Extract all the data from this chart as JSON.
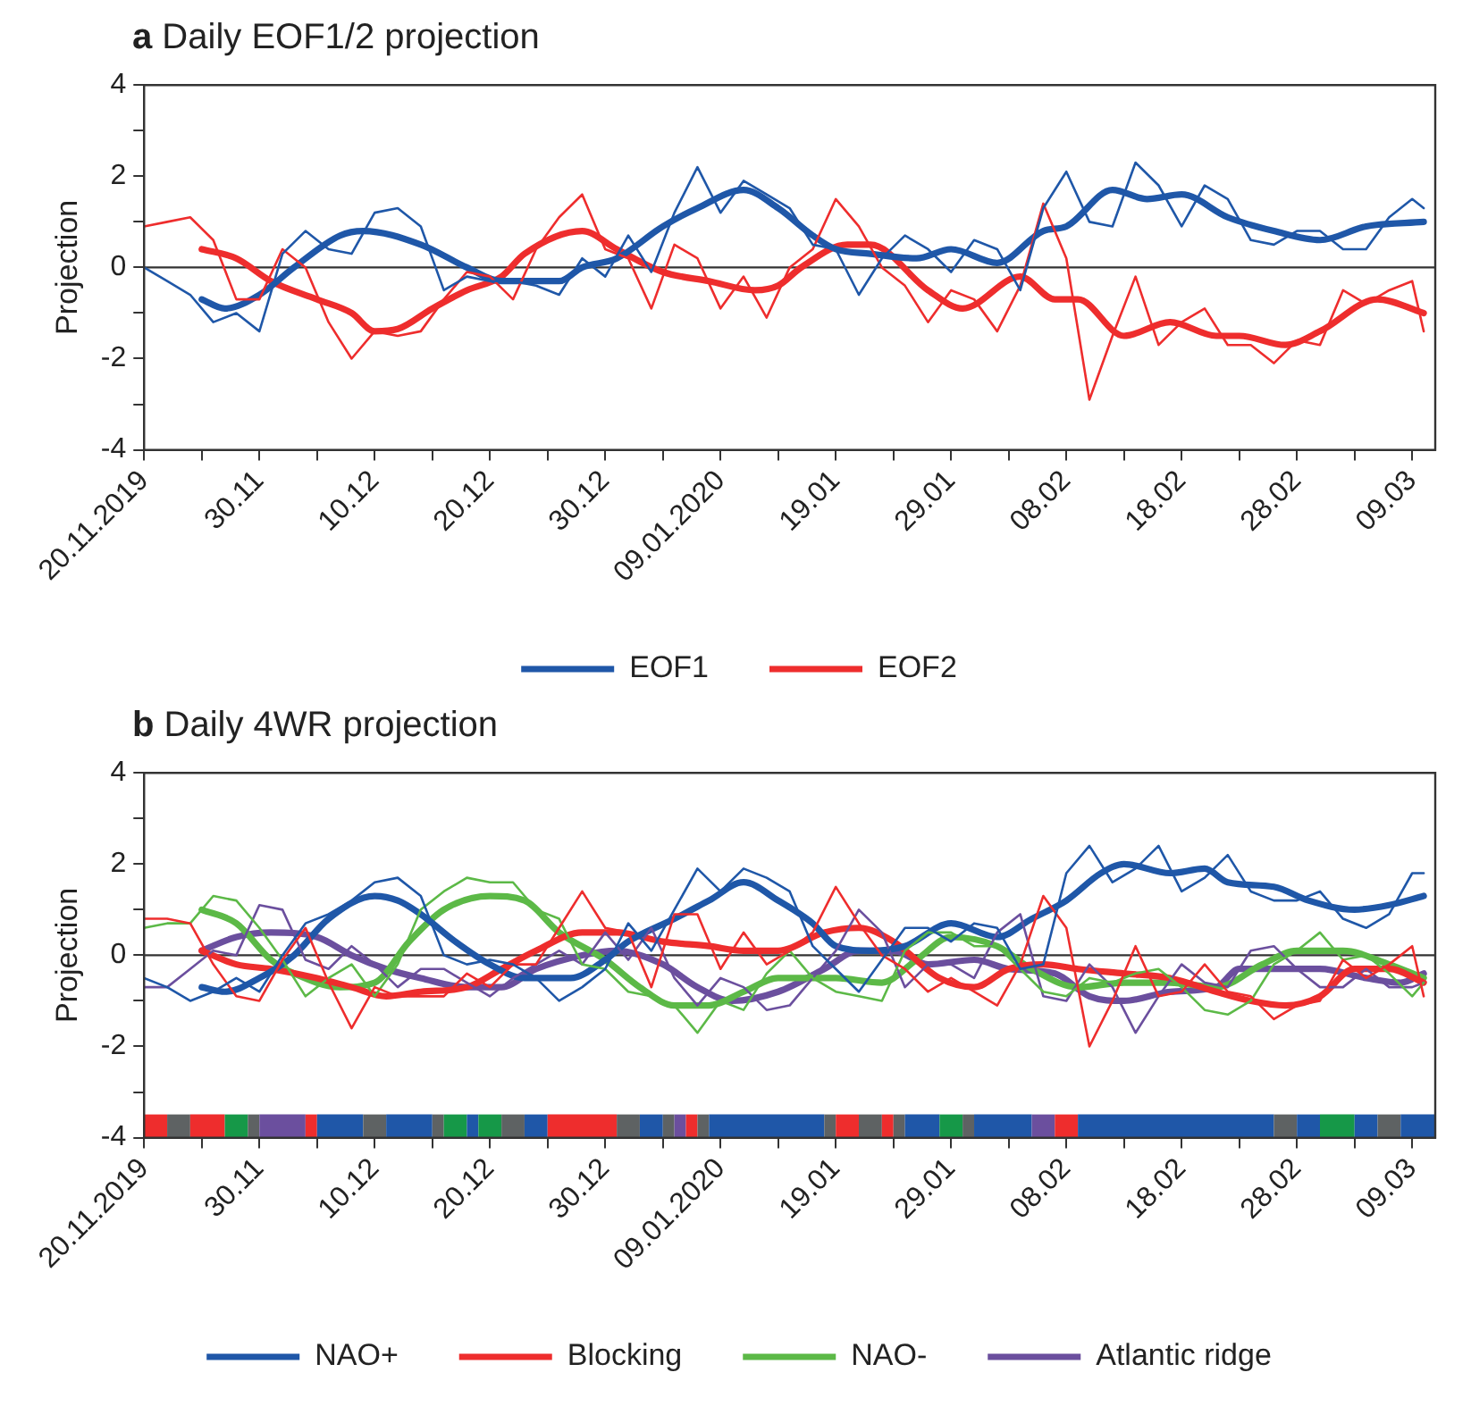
{
  "chart_data": [
    {
      "type": "line",
      "title": "a Daily EOF1/2 projection",
      "ylabel": "Projection",
      "x": [
        "2019-11-20",
        "2019-11-22",
        "2019-11-24",
        "2019-11-26",
        "2019-11-28",
        "2019-11-30",
        "2019-12-02",
        "2019-12-04",
        "2019-12-06",
        "2019-12-08",
        "2019-12-10",
        "2019-12-12",
        "2019-12-14",
        "2019-12-16",
        "2019-12-18",
        "2019-12-20",
        "2019-12-22",
        "2019-12-24",
        "2019-12-26",
        "2019-12-28",
        "2019-12-30",
        "2020-01-01",
        "2020-01-03",
        "2020-01-05",
        "2020-01-07",
        "2020-01-09",
        "2020-01-11",
        "2020-01-13",
        "2020-01-15",
        "2020-01-17",
        "2020-01-19",
        "2020-01-21",
        "2020-01-23",
        "2020-01-25",
        "2020-01-27",
        "2020-01-29",
        "2020-01-31",
        "2020-02-02",
        "2020-02-04",
        "2020-02-06",
        "2020-02-08",
        "2020-02-10",
        "2020-02-12",
        "2020-02-14",
        "2020-02-16",
        "2020-02-18",
        "2020-02-20",
        "2020-02-22",
        "2020-02-24",
        "2020-02-26",
        "2020-02-28",
        "2020-03-01",
        "2020-03-03",
        "2020-03-05",
        "2020-03-07",
        "2020-03-09",
        "2020-03-10"
      ],
      "series": [
        {
          "color": "#1f57a8",
          "values": [
            0,
            -0.3,
            -0.6,
            -1.2,
            -1,
            -1.4,
            0.3,
            0.8,
            0.4,
            0.3,
            1.2,
            1.3,
            0.9,
            -0.5,
            -0.2,
            -0.3,
            -0.3,
            -0.4,
            -0.6,
            0.2,
            -0.2,
            0.7,
            -0.1,
            1.2,
            2.2,
            1.2,
            1.9,
            1.6,
            1.3,
            0.5,
            0.4,
            -0.6,
            0.2,
            0.7,
            0.4,
            -0.1,
            0.6,
            0.4,
            -0.5,
            1.3,
            2.1,
            1,
            0.9,
            2.3,
            1.8,
            0.9,
            1.8,
            1.5,
            0.6,
            0.5,
            0.8,
            0.8,
            0.4,
            0.4,
            1.1,
            1.5,
            1.3
          ]
        },
        {
          "color": "#ee2d2d",
          "values": [
            0.9,
            1,
            1.1,
            0.6,
            -0.7,
            -0.7,
            0.4,
            0,
            -1.2,
            -2,
            -1.4,
            -1.5,
            -1.4,
            -0.7,
            -0.1,
            -0.2,
            -0.7,
            0.4,
            1.1,
            1.6,
            0.4,
            0.2,
            -0.9,
            0.5,
            0.2,
            -0.9,
            -0.2,
            -1.1,
            0,
            0.4,
            1.5,
            0.9,
            0,
            -0.4,
            -1.2,
            -0.5,
            -0.7,
            -1.4,
            -0.4,
            1.4,
            0.2,
            -2.9,
            -1.5,
            -0.2,
            -1.7,
            -1.2,
            -0.9,
            -1.7,
            -1.7,
            -2.1,
            -1.6,
            -1.7,
            -0.5,
            -0.8,
            -0.5,
            -0.3,
            -1.4
          ]
        },
        {
          "name": "EOF1",
          "color": "#1f57a8",
          "x": [
            "2019-11-25",
            "2019-11-27",
            "2019-11-30",
            "2019-12-03",
            "2019-12-07",
            "2019-12-09",
            "2019-12-14",
            "2019-12-18",
            "2019-12-21",
            "2019-12-26",
            "2019-12-28",
            "2019-12-31",
            "2020-01-04",
            "2020-01-07",
            "2020-01-11",
            "2020-01-14",
            "2020-01-17",
            "2020-01-19",
            "2020-01-22",
            "2020-01-26",
            "2020-01-29",
            "2020-02-02",
            "2020-02-06",
            "2020-02-08",
            "2020-02-12",
            "2020-02-15",
            "2020-02-18",
            "2020-02-22",
            "2020-02-26",
            "2020-03-01",
            "2020-03-05",
            "2020-03-10"
          ],
          "values": [
            -0.7,
            -0.9,
            -0.6,
            0,
            0.7,
            0.8,
            0.5,
            0,
            -0.3,
            -0.3,
            0,
            0.2,
            0.9,
            1.3,
            1.7,
            1.3,
            0.7,
            0.4,
            0.3,
            0.2,
            0.4,
            0.1,
            0.8,
            0.9,
            1.7,
            1.5,
            1.6,
            1.1,
            0.8,
            0.6,
            0.9,
            1
          ]
        },
        {
          "name": "EOF2",
          "color": "#ee2d2d",
          "x": [
            "2019-11-25",
            "2019-11-28",
            "2019-12-01",
            "2019-12-05",
            "2019-12-08",
            "2019-12-10",
            "2019-12-12",
            "2019-12-15",
            "2019-12-18",
            "2019-12-21",
            "2019-12-23",
            "2019-12-28",
            "2019-12-31",
            "2020-01-04",
            "2020-01-08",
            "2020-01-12",
            "2020-01-14",
            "2020-01-16",
            "2020-01-20",
            "2020-01-22",
            "2020-01-27",
            "2020-01-30",
            "2020-02-04",
            "2020-02-07",
            "2020-02-09",
            "2020-02-13",
            "2020-02-17",
            "2020-02-21",
            "2020-02-23",
            "2020-02-27",
            "2020-03-01",
            "2020-03-06",
            "2020-03-10"
          ],
          "values": [
            0.4,
            0.2,
            -0.3,
            -0.7,
            -1,
            -1.4,
            -1.35,
            -0.9,
            -0.5,
            -0.2,
            0.3,
            0.8,
            0.4,
            -0.1,
            -0.3,
            -0.5,
            -0.4,
            0,
            0.5,
            0.5,
            -0.5,
            -0.9,
            -0.2,
            -0.7,
            -0.7,
            -1.5,
            -1.2,
            -1.5,
            -1.5,
            -1.7,
            -1.4,
            -0.7,
            -1
          ]
        }
      ],
      "xlim": [
        "2019-11-20",
        "2020-03-11"
      ],
      "xticks": [
        {
          "value": "2019-11-20",
          "label": "20.11.2019"
        },
        {
          "value": "2019-11-25",
          "label": null
        },
        {
          "value": "2019-11-30",
          "label": "30.11"
        },
        {
          "value": "2019-12-05",
          "label": null
        },
        {
          "value": "2019-12-10",
          "label": "10.12"
        },
        {
          "value": "2019-12-15",
          "label": null
        },
        {
          "value": "2019-12-20",
          "label": "20.12"
        },
        {
          "value": "2019-12-25",
          "label": null
        },
        {
          "value": "2019-12-30",
          "label": "30.12"
        },
        {
          "value": "2020-01-04",
          "label": null
        },
        {
          "value": "2020-01-09",
          "label": "09.01.2020"
        },
        {
          "value": "2020-01-14",
          "label": null
        },
        {
          "value": "2020-01-19",
          "label": "19.01"
        },
        {
          "value": "2020-01-24",
          "label": null
        },
        {
          "value": "2020-01-29",
          "label": "29.01"
        },
        {
          "value": "2020-02-03",
          "label": null
        },
        {
          "value": "2020-02-08",
          "label": "08.02"
        },
        {
          "value": "2020-02-13",
          "label": null
        },
        {
          "value": "2020-02-18",
          "label": "18.02"
        },
        {
          "value": "2020-02-23",
          "label": null
        },
        {
          "value": "2020-02-28",
          "label": "28.02"
        },
        {
          "value": "2020-03-04",
          "label": null
        },
        {
          "value": "2020-03-09",
          "label": "09.03"
        }
      ],
      "ylim": [
        -4,
        4
      ],
      "yticks": [
        -4,
        {
          "value": -3,
          "label": null
        },
        -2,
        {
          "value": -1,
          "label": null
        },
        0,
        {
          "value": 1,
          "label": null
        },
        2,
        {
          "value": 3,
          "label": null
        },
        4
      ],
      "ref_lines": [
        {
          "axis": "y",
          "value": 0,
          "color": "#333333"
        }
      ],
      "legend": "bottom",
      "marker": "none",
      "line_style": "solid"
    },
    {
      "type": "line",
      "title": "b Daily 4WR projection",
      "ylabel": "Projection",
      "x": [
        "2019-11-20",
        "2019-11-22",
        "2019-11-24",
        "2019-11-26",
        "2019-11-28",
        "2019-11-30",
        "2019-12-02",
        "2019-12-04",
        "2019-12-06",
        "2019-12-08",
        "2019-12-10",
        "2019-12-12",
        "2019-12-14",
        "2019-12-16",
        "2019-12-18",
        "2019-12-20",
        "2019-12-22",
        "2019-12-24",
        "2019-12-26",
        "2019-12-28",
        "2019-12-30",
        "2020-01-01",
        "2020-01-03",
        "2020-01-05",
        "2020-01-07",
        "2020-01-09",
        "2020-01-11",
        "2020-01-13",
        "2020-01-15",
        "2020-01-17",
        "2020-01-19",
        "2020-01-21",
        "2020-01-23",
        "2020-01-25",
        "2020-01-27",
        "2020-01-29",
        "2020-01-31",
        "2020-02-02",
        "2020-02-04",
        "2020-02-06",
        "2020-02-08",
        "2020-02-10",
        "2020-02-12",
        "2020-02-14",
        "2020-02-16",
        "2020-02-18",
        "2020-02-20",
        "2020-02-22",
        "2020-02-24",
        "2020-02-26",
        "2020-02-28",
        "2020-03-01",
        "2020-03-03",
        "2020-03-05",
        "2020-03-07",
        "2020-03-09",
        "2020-03-10"
      ],
      "series": [
        {
          "color": "#1f57a8",
          "values": [
            -0.5,
            -0.7,
            -1,
            -0.8,
            -0.5,
            -0.8,
            0,
            0.7,
            0.9,
            1.2,
            1.6,
            1.7,
            1.3,
            0,
            -0.2,
            -0.1,
            -0.2,
            -0.5,
            -1,
            -0.7,
            -0.3,
            0.7,
            0.1,
            1,
            1.9,
            1.4,
            1.9,
            1.7,
            1.4,
            0.2,
            -0.3,
            -0.8,
            -0.1,
            0.6,
            0.6,
            0.3,
            0.7,
            0.6,
            -0.3,
            -0.2,
            1.8,
            2.4,
            1.6,
            1.9,
            2.4,
            1.4,
            1.7,
            2.2,
            1.4,
            1.2,
            1.2,
            1.4,
            0.8,
            0.6,
            0.9,
            1.8,
            1.8
          ]
        },
        {
          "color": "#ee2d2d",
          "values": [
            0.8,
            0.8,
            0.7,
            -0.2,
            -0.9,
            -1,
            -0.1,
            0.6,
            -0.6,
            -1.6,
            -0.7,
            -0.9,
            -0.9,
            -0.9,
            -0.4,
            -0.7,
            -0.2,
            -0.2,
            0.6,
            1.4,
            0.6,
            0.5,
            -0.7,
            0.9,
            0.9,
            -0.3,
            0.5,
            -0.2,
            0.1,
            0.5,
            1.5,
            0.7,
            0,
            -0.3,
            -0.8,
            -0.5,
            -0.8,
            -1.1,
            -0.2,
            1.3,
            0.6,
            -2,
            -1,
            0.2,
            -0.9,
            -0.8,
            -0.2,
            -0.8,
            -0.9,
            -1.4,
            -1.1,
            -1,
            -0.1,
            -0.5,
            -0.2,
            0.2,
            -0.9
          ]
        },
        {
          "color": "#5cb947",
          "values": [
            0.6,
            0.7,
            0.7,
            1.3,
            1.2,
            0.6,
            -0.1,
            -0.9,
            -0.5,
            -0.2,
            -0.9,
            -0.2,
            1,
            1.4,
            1.7,
            1.6,
            1.6,
            1,
            0.8,
            -0.2,
            -0.3,
            -0.8,
            -0.9,
            -1.1,
            -1.7,
            -1,
            -1.2,
            -0.4,
            0.1,
            -0.5,
            -0.8,
            -0.9,
            -1,
            0.1,
            0.5,
            0.5,
            0.2,
            0.2,
            -0.3,
            -0.8,
            -0.9,
            -0.5,
            -0.6,
            -0.4,
            -0.3,
            -0.7,
            -1.2,
            -1.3,
            -1,
            -0.2,
            0.1,
            0.5,
            -0.1,
            0,
            -0.4,
            -0.9,
            -0.6
          ]
        },
        {
          "color": "#6b4f9e",
          "values": [
            -0.7,
            -0.7,
            -0.3,
            0.1,
            0,
            1.1,
            1,
            -0.1,
            -0.3,
            0.2,
            -0.2,
            -0.7,
            -0.3,
            -0.3,
            -0.6,
            -0.9,
            -0.5,
            -0.2,
            0.1,
            -0.2,
            0.5,
            -0.1,
            0.6,
            -0.5,
            -1.1,
            -0.5,
            -0.7,
            -1.2,
            -1.1,
            -0.5,
            0.1,
            1,
            0.5,
            -0.7,
            -0.2,
            -0.2,
            -0.5,
            0.5,
            0.9,
            -0.9,
            -1,
            -0.2,
            -0.7,
            -1.7,
            -0.9,
            -0.2,
            -0.6,
            -0.7,
            0.1,
            0.2,
            -0.3,
            -0.7,
            -0.7,
            -0.3,
            -0.7,
            -0.7,
            -0.6
          ]
        },
        {
          "name": "NAO+",
          "color": "#1f57a8",
          "x": [
            "2019-11-25",
            "2019-11-27",
            "2019-11-30",
            "2019-12-03",
            "2019-12-06",
            "2019-12-10",
            "2019-12-12",
            "2019-12-14",
            "2019-12-17",
            "2019-12-20",
            "2019-12-23",
            "2019-12-27",
            "2019-12-30",
            "2020-01-01",
            "2020-01-05",
            "2020-01-08",
            "2020-01-11",
            "2020-01-14",
            "2020-01-17",
            "2020-01-19",
            "2020-01-22",
            "2020-01-25",
            "2020-01-29",
            "2020-02-02",
            "2020-02-05",
            "2020-02-08",
            "2020-02-11",
            "2020-02-13",
            "2020-02-17",
            "2020-02-20",
            "2020-02-22",
            "2020-02-26",
            "2020-02-29",
            "2020-03-04",
            "2020-03-07",
            "2020-03-10"
          ],
          "values": [
            -0.7,
            -0.8,
            -0.5,
            0,
            0.8,
            1.3,
            1.2,
            0.9,
            0.3,
            -0.2,
            -0.5,
            -0.5,
            -0.1,
            0.3,
            0.8,
            1.2,
            1.6,
            1.2,
            0.7,
            0.2,
            0.1,
            0.2,
            0.7,
            0.4,
            0.8,
            1.2,
            1.8,
            2,
            1.8,
            1.9,
            1.6,
            1.5,
            1.2,
            1,
            1.1,
            1.3
          ]
        },
        {
          "name": "Blocking",
          "color": "#ee2d2d",
          "x": [
            "2019-11-25",
            "2019-11-28",
            "2019-12-01",
            "2019-12-05",
            "2019-12-08",
            "2019-12-11",
            "2019-12-14",
            "2019-12-18",
            "2019-12-21",
            "2019-12-24",
            "2019-12-28",
            "2019-12-31",
            "2020-01-04",
            "2020-01-08",
            "2020-01-11",
            "2020-01-14",
            "2020-01-18",
            "2020-01-21",
            "2020-01-24",
            "2020-01-28",
            "2020-01-31",
            "2020-02-03",
            "2020-02-06",
            "2020-02-09",
            "2020-02-13",
            "2020-02-17",
            "2020-02-21",
            "2020-02-24",
            "2020-02-27",
            "2020-03-01",
            "2020-03-04",
            "2020-03-07",
            "2020-03-10"
          ],
          "values": [
            0.1,
            -0.2,
            -0.3,
            -0.5,
            -0.7,
            -0.9,
            -0.8,
            -0.7,
            -0.3,
            0.1,
            0.5,
            0.5,
            0.3,
            0.2,
            0.1,
            0.1,
            0.5,
            0.6,
            0.3,
            -0.5,
            -0.7,
            -0.3,
            -0.2,
            -0.3,
            -0.4,
            -0.5,
            -0.8,
            -1,
            -1.1,
            -0.9,
            -0.3,
            -0.3,
            -0.6
          ]
        },
        {
          "name": "NAO-",
          "color": "#5cb947",
          "x": [
            "2019-11-25",
            "2019-11-28",
            "2019-12-01",
            "2019-12-03",
            "2019-12-07",
            "2019-12-10",
            "2019-12-13",
            "2019-12-16",
            "2019-12-20",
            "2019-12-23",
            "2019-12-26",
            "2019-12-30",
            "2020-01-02",
            "2020-01-05",
            "2020-01-08",
            "2020-01-11",
            "2020-01-14",
            "2020-01-19",
            "2020-01-23",
            "2020-01-26",
            "2020-01-29",
            "2020-02-02",
            "2020-02-05",
            "2020-02-09",
            "2020-02-13",
            "2020-02-17",
            "2020-02-21",
            "2020-02-25",
            "2020-02-28",
            "2020-03-03",
            "2020-03-07",
            "2020-03-10"
          ],
          "values": [
            1,
            0.7,
            -0.1,
            -0.4,
            -0.7,
            -0.6,
            0.3,
            1,
            1.3,
            1.2,
            0.5,
            -0.1,
            -0.7,
            -1.1,
            -1.1,
            -0.8,
            -0.5,
            -0.5,
            -0.6,
            -0.1,
            0.4,
            0.2,
            -0.3,
            -0.7,
            -0.6,
            -0.6,
            -0.7,
            -0.2,
            0.1,
            0.1,
            -0.2,
            -0.5
          ]
        },
        {
          "name": "Atlantic ridge",
          "color": "#6b4f9e",
          "x": [
            "2019-11-25",
            "2019-11-28",
            "2019-12-01",
            "2019-12-05",
            "2019-12-08",
            "2019-12-11",
            "2019-12-14",
            "2019-12-18",
            "2019-12-21",
            "2019-12-24",
            "2019-12-28",
            "2019-12-31",
            "2020-01-04",
            "2020-01-07",
            "2020-01-10",
            "2020-01-14",
            "2020-01-18",
            "2020-01-21",
            "2020-01-24",
            "2020-01-27",
            "2020-01-31",
            "2020-02-03",
            "2020-02-07",
            "2020-02-10",
            "2020-02-13",
            "2020-02-17",
            "2020-02-21",
            "2020-02-23",
            "2020-02-26",
            "2020-03-01",
            "2020-03-05",
            "2020-03-08",
            "2020-03-10"
          ],
          "values": [
            0.1,
            0.4,
            0.5,
            0.4,
            0,
            -0.3,
            -0.5,
            -0.7,
            -0.7,
            -0.3,
            0,
            0.1,
            -0.2,
            -0.7,
            -1,
            -0.8,
            -0.3,
            0.1,
            0.1,
            -0.2,
            -0.1,
            -0.3,
            -0.4,
            -0.9,
            -1,
            -0.8,
            -0.7,
            -0.3,
            -0.3,
            -0.3,
            -0.5,
            -0.6,
            -0.4
          ]
        }
      ],
      "bands": [
        {
          "axis": "x",
          "from": "2019-11-20",
          "to": "2019-11-22",
          "color": "#ee2d2d"
        },
        {
          "axis": "x",
          "from": "2019-11-22",
          "to": "2019-11-24",
          "color": "#5e6263"
        },
        {
          "axis": "x",
          "from": "2019-11-24",
          "to": "2019-11-27",
          "color": "#ee2d2d"
        },
        {
          "axis": "x",
          "from": "2019-11-27",
          "to": "2019-11-29",
          "color": "#169848"
        },
        {
          "axis": "x",
          "from": "2019-11-29",
          "to": "2019-11-30",
          "color": "#5e6263"
        },
        {
          "axis": "x",
          "from": "2019-11-30",
          "to": "2019-12-04",
          "color": "#6b4f9e"
        },
        {
          "axis": "x",
          "from": "2019-12-04",
          "to": "2019-12-05",
          "color": "#ee2d2d"
        },
        {
          "axis": "x",
          "from": "2019-12-05",
          "to": "2019-12-09",
          "color": "#1f57a8"
        },
        {
          "axis": "x",
          "from": "2019-12-09",
          "to": "2019-12-11",
          "color": "#5e6263"
        },
        {
          "axis": "x",
          "from": "2019-12-11",
          "to": "2019-12-15",
          "color": "#1f57a8"
        },
        {
          "axis": "x",
          "from": "2019-12-15",
          "to": "2019-12-16",
          "color": "#5e6263"
        },
        {
          "axis": "x",
          "from": "2019-12-16",
          "to": "2019-12-18",
          "color": "#169848"
        },
        {
          "axis": "x",
          "from": "2019-12-18",
          "to": "2019-12-19",
          "color": "#1f57a8"
        },
        {
          "axis": "x",
          "from": "2019-12-19",
          "to": "2019-12-21",
          "color": "#169848"
        },
        {
          "axis": "x",
          "from": "2019-12-21",
          "to": "2019-12-23",
          "color": "#5e6263"
        },
        {
          "axis": "x",
          "from": "2019-12-23",
          "to": "2019-12-25",
          "color": "#1f57a8"
        },
        {
          "axis": "x",
          "from": "2019-12-25",
          "to": "2019-12-31",
          "color": "#ee2d2d"
        },
        {
          "axis": "x",
          "from": "2019-12-31",
          "to": "2020-01-02",
          "color": "#5e6263"
        },
        {
          "axis": "x",
          "from": "2020-01-02",
          "to": "2020-01-04",
          "color": "#1f57a8"
        },
        {
          "axis": "x",
          "from": "2020-01-04",
          "to": "2020-01-05",
          "color": "#5e6263"
        },
        {
          "axis": "x",
          "from": "2020-01-05",
          "to": "2020-01-06",
          "color": "#6b4f9e"
        },
        {
          "axis": "x",
          "from": "2020-01-06",
          "to": "2020-01-07",
          "color": "#ee2d2d"
        },
        {
          "axis": "x",
          "from": "2020-01-07",
          "to": "2020-01-08",
          "color": "#5e6263"
        },
        {
          "axis": "x",
          "from": "2020-01-08",
          "to": "2020-01-18",
          "color": "#1f57a8"
        },
        {
          "axis": "x",
          "from": "2020-01-18",
          "to": "2020-01-19",
          "color": "#5e6263"
        },
        {
          "axis": "x",
          "from": "2020-01-19",
          "to": "2020-01-21",
          "color": "#ee2d2d"
        },
        {
          "axis": "x",
          "from": "2020-01-21",
          "to": "2020-01-23",
          "color": "#5e6263"
        },
        {
          "axis": "x",
          "from": "2020-01-23",
          "to": "2020-01-24",
          "color": "#ee2d2d"
        },
        {
          "axis": "x",
          "from": "2020-01-24",
          "to": "2020-01-25",
          "color": "#5e6263"
        },
        {
          "axis": "x",
          "from": "2020-01-25",
          "to": "2020-01-28",
          "color": "#1f57a8"
        },
        {
          "axis": "x",
          "from": "2020-01-28",
          "to": "2020-01-30",
          "color": "#169848"
        },
        {
          "axis": "x",
          "from": "2020-01-30",
          "to": "2020-01-31",
          "color": "#5e6263"
        },
        {
          "axis": "x",
          "from": "2020-01-31",
          "to": "2020-02-05",
          "color": "#1f57a8"
        },
        {
          "axis": "x",
          "from": "2020-02-05",
          "to": "2020-02-07",
          "color": "#6b4f9e"
        },
        {
          "axis": "x",
          "from": "2020-02-07",
          "to": "2020-02-09",
          "color": "#ee2d2d"
        },
        {
          "axis": "x",
          "from": "2020-02-09",
          "to": "2020-02-26",
          "color": "#1f57a8"
        },
        {
          "axis": "x",
          "from": "2020-02-26",
          "to": "2020-02-28",
          "color": "#5e6263"
        },
        {
          "axis": "x",
          "from": "2020-02-28",
          "to": "2020-03-01",
          "color": "#1f57a8"
        },
        {
          "axis": "x",
          "from": "2020-03-01",
          "to": "2020-03-04",
          "color": "#169848"
        },
        {
          "axis": "x",
          "from": "2020-03-04",
          "to": "2020-03-06",
          "color": "#1f57a8"
        },
        {
          "axis": "x",
          "from": "2020-03-06",
          "to": "2020-03-08",
          "color": "#5e6263"
        },
        {
          "axis": "x",
          "from": "2020-03-08",
          "to": "2020-03-11",
          "color": "#1f57a8"
        }
      ],
      "xlim": [
        "2019-11-20",
        "2020-03-11"
      ],
      "xticks": [
        {
          "value": "2019-11-20",
          "label": "20.11.2019"
        },
        {
          "value": "2019-11-25",
          "label": null
        },
        {
          "value": "2019-11-30",
          "label": "30.11"
        },
        {
          "value": "2019-12-05",
          "label": null
        },
        {
          "value": "2019-12-10",
          "label": "10.12"
        },
        {
          "value": "2019-12-15",
          "label": null
        },
        {
          "value": "2019-12-20",
          "label": "20.12"
        },
        {
          "value": "2019-12-25",
          "label": null
        },
        {
          "value": "2019-12-30",
          "label": "30.12"
        },
        {
          "value": "2020-01-04",
          "label": null
        },
        {
          "value": "2020-01-09",
          "label": "09.01.2020"
        },
        {
          "value": "2020-01-14",
          "label": null
        },
        {
          "value": "2020-01-19",
          "label": "19.01"
        },
        {
          "value": "2020-01-24",
          "label": null
        },
        {
          "value": "2020-01-29",
          "label": "29.01"
        },
        {
          "value": "2020-02-03",
          "label": null
        },
        {
          "value": "2020-02-08",
          "label": "08.02"
        },
        {
          "value": "2020-02-13",
          "label": null
        },
        {
          "value": "2020-02-18",
          "label": "18.02"
        },
        {
          "value": "2020-02-23",
          "label": null
        },
        {
          "value": "2020-02-28",
          "label": "28.02"
        },
        {
          "value": "2020-03-04",
          "label": null
        },
        {
          "value": "2020-03-09",
          "label": "09.03"
        }
      ],
      "ylim": [
        -4,
        4
      ],
      "yticks": [
        -4,
        {
          "value": -3,
          "label": null
        },
        -2,
        {
          "value": -1,
          "label": null
        },
        0,
        {
          "value": 1,
          "label": null
        },
        2,
        {
          "value": 3,
          "label": null
        },
        4
      ],
      "ref_lines": [
        {
          "axis": "y",
          "value": 0,
          "color": "#333333"
        }
      ],
      "legend": "bottom",
      "marker": "none",
      "line_style": "solid"
    }
  ]
}
